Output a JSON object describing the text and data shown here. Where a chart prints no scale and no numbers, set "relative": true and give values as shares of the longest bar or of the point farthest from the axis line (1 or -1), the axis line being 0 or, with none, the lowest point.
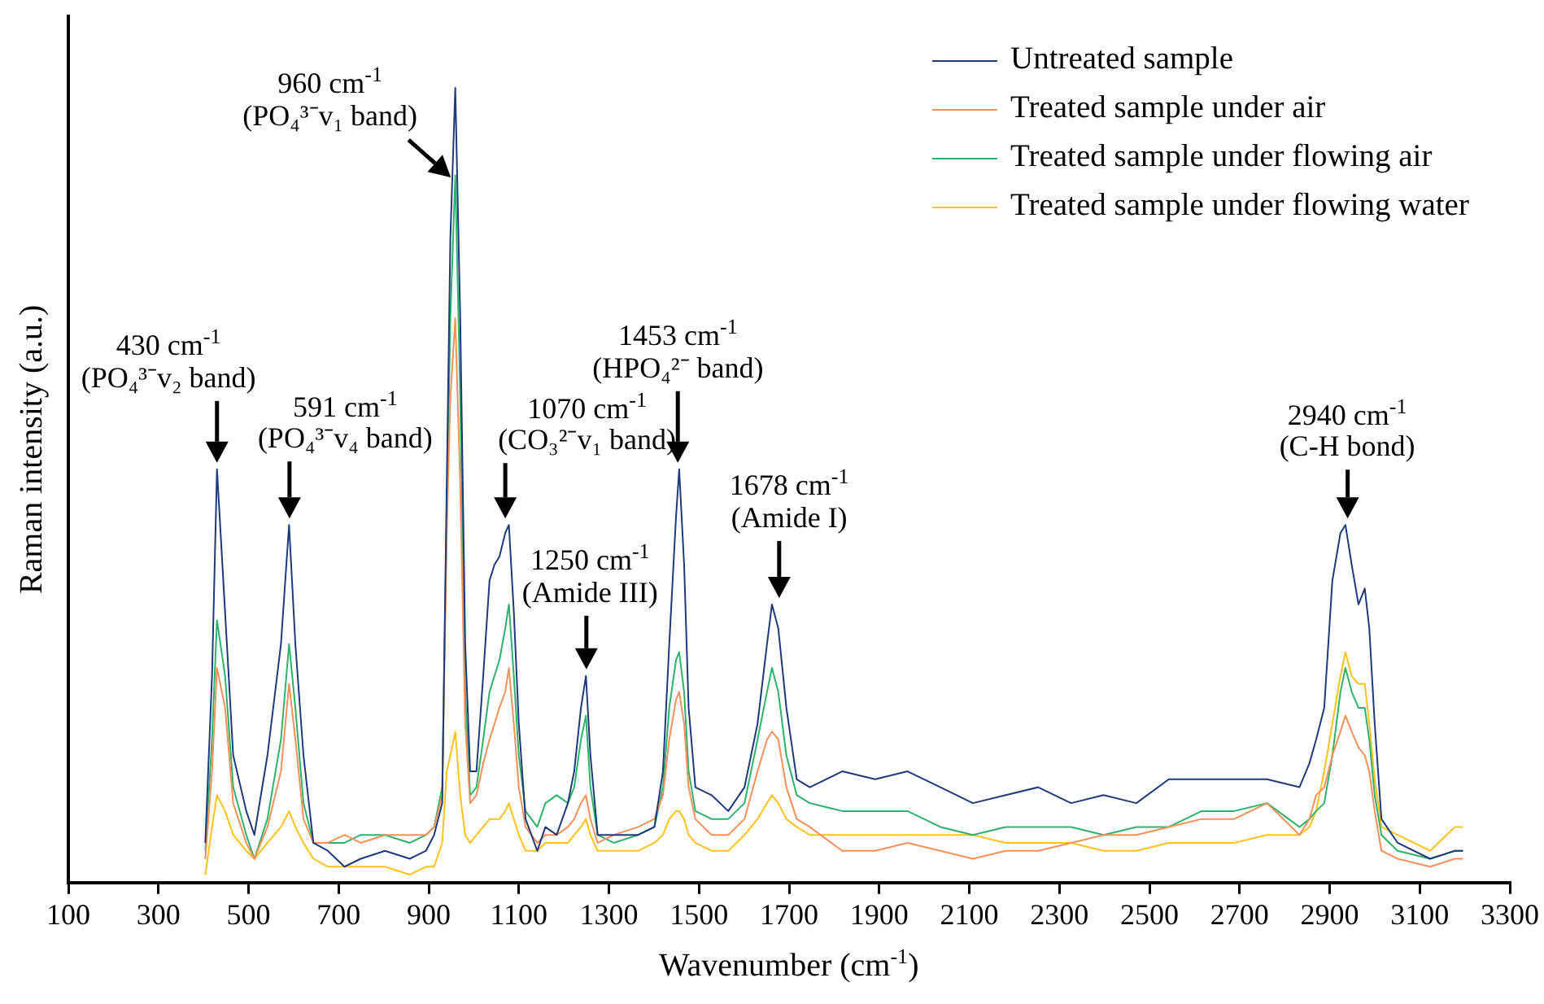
{
  "chart_data": {
    "type": "line",
    "relative": true,
    "xlabel": "Wavenumber (cm$^{-1}$)",
    "ylabel": "Raman intensity (a.u.)",
    "xlim": [
      100,
      3300
    ],
    "xticks": [
      100,
      300,
      500,
      700,
      900,
      1100,
      1300,
      1500,
      1700,
      1900,
      2100,
      2300,
      2500,
      2700,
      2900,
      3100,
      3300
    ],
    "grid": false,
    "legend": "top right",
    "marker": "none",
    "line_style": "solid",
    "x": [
      404,
      419,
      430,
      448,
      466,
      495,
      513,
      542,
      572,
      590,
      604,
      622,
      644,
      676,
      713,
      749,
      803,
      858,
      894,
      912,
      930,
      940,
      948,
      959,
      970,
      981,
      992,
      1006,
      1021,
      1035,
      1046,
      1057,
      1070,
      1078,
      1089,
      1100,
      1115,
      1141,
      1159,
      1184,
      1209,
      1223,
      1238,
      1249,
      1259,
      1275,
      1311,
      1365,
      1401,
      1420,
      1434,
      1449,
      1456,
      1467,
      1477,
      1492,
      1528,
      1565,
      1601,
      1630,
      1651,
      1662,
      1676,
      1694,
      1717,
      1746,
      1818,
      1891,
      1963,
      2036,
      2108,
      2181,
      2253,
      2326,
      2398,
      2471,
      2543,
      2616,
      2688,
      2761,
      2833,
      2855,
      2870,
      2888,
      2906,
      2924,
      2935,
      2949,
      2964,
      2978,
      2988,
      3000,
      3015,
      3051,
      3123,
      3178,
      3196
    ],
    "series": [
      {
        "name": "Untreated sample",
        "color": "#1f3a7a",
        "values": [
          0.05,
          0.26,
          0.52,
          0.34,
          0.16,
          0.09,
          0.06,
          0.16,
          0.3,
          0.45,
          0.3,
          0.16,
          0.05,
          0.04,
          0.02,
          0.03,
          0.04,
          0.03,
          0.04,
          0.06,
          0.1,
          0.5,
          0.81,
          1,
          0.71,
          0.3,
          0.14,
          0.14,
          0.26,
          0.38,
          0.4,
          0.41,
          0.44,
          0.45,
          0.34,
          0.2,
          0.08,
          0.04,
          0.07,
          0.06,
          0.1,
          0.14,
          0.22,
          0.26,
          0.16,
          0.06,
          0.06,
          0.06,
          0.07,
          0.14,
          0.3,
          0.46,
          0.52,
          0.4,
          0.22,
          0.12,
          0.11,
          0.09,
          0.12,
          0.2,
          0.3,
          0.35,
          0.32,
          0.22,
          0.13,
          0.12,
          0.14,
          0.13,
          0.14,
          0.12,
          0.1,
          0.11,
          0.12,
          0.1,
          0.11,
          0.1,
          0.13,
          0.13,
          0.13,
          0.13,
          0.12,
          0.15,
          0.18,
          0.22,
          0.38,
          0.44,
          0.45,
          0.4,
          0.35,
          0.37,
          0.32,
          0.2,
          0.08,
          0.05,
          0.03,
          0.04,
          0.04
        ]
      },
      {
        "name": "Treated sample under air",
        "color": "#f4915a",
        "values": [
          0.03,
          0.14,
          0.27,
          0.22,
          0.1,
          0.05,
          0.03,
          0.07,
          0.14,
          0.25,
          0.18,
          0.08,
          0.05,
          0.05,
          0.06,
          0.05,
          0.06,
          0.06,
          0.06,
          0.07,
          0.11,
          0.44,
          0.61,
          0.71,
          0.5,
          0.2,
          0.1,
          0.11,
          0.15,
          0.18,
          0.2,
          0.22,
          0.24,
          0.27,
          0.2,
          0.12,
          0.07,
          0.05,
          0.06,
          0.06,
          0.07,
          0.08,
          0.1,
          0.11,
          0.08,
          0.05,
          0.06,
          0.07,
          0.08,
          0.11,
          0.18,
          0.23,
          0.24,
          0.2,
          0.12,
          0.08,
          0.06,
          0.06,
          0.08,
          0.14,
          0.18,
          0.19,
          0.18,
          0.12,
          0.08,
          0.07,
          0.04,
          0.04,
          0.05,
          0.04,
          0.03,
          0.04,
          0.04,
          0.05,
          0.06,
          0.06,
          0.07,
          0.08,
          0.08,
          0.1,
          0.06,
          0.08,
          0.11,
          0.12,
          0.16,
          0.19,
          0.21,
          0.19,
          0.17,
          0.16,
          0.14,
          0.09,
          0.04,
          0.03,
          0.02,
          0.03,
          0.03
        ]
      },
      {
        "name": "Treated sample under flowing air",
        "color": "#2fb36a",
        "values": [
          0.04,
          0.18,
          0.33,
          0.26,
          0.12,
          0.06,
          0.03,
          0.08,
          0.18,
          0.3,
          0.22,
          0.1,
          0.05,
          0.05,
          0.05,
          0.06,
          0.06,
          0.05,
          0.06,
          0.07,
          0.12,
          0.46,
          0.71,
          0.89,
          0.61,
          0.24,
          0.11,
          0.12,
          0.18,
          0.24,
          0.26,
          0.28,
          0.32,
          0.35,
          0.26,
          0.16,
          0.09,
          0.07,
          0.1,
          0.11,
          0.1,
          0.12,
          0.18,
          0.21,
          0.12,
          0.06,
          0.05,
          0.06,
          0.07,
          0.12,
          0.22,
          0.28,
          0.29,
          0.24,
          0.14,
          0.09,
          0.08,
          0.08,
          0.1,
          0.18,
          0.24,
          0.27,
          0.24,
          0.16,
          0.11,
          0.1,
          0.09,
          0.09,
          0.09,
          0.07,
          0.06,
          0.07,
          0.07,
          0.07,
          0.06,
          0.07,
          0.07,
          0.09,
          0.09,
          0.1,
          0.07,
          0.08,
          0.09,
          0.1,
          0.16,
          0.24,
          0.27,
          0.24,
          0.22,
          0.22,
          0.18,
          0.11,
          0.06,
          0.04,
          0.03,
          0.04,
          0.04
        ]
      },
      {
        "name": "Treated sample under flowing water",
        "color": "#ffc21a",
        "values": [
          0.01,
          0.07,
          0.11,
          0.09,
          0.06,
          0.04,
          0.03,
          0.05,
          0.07,
          0.09,
          0.07,
          0.05,
          0.03,
          0.02,
          0.02,
          0.02,
          0.02,
          0.01,
          0.02,
          0.02,
          0.05,
          0.14,
          0.16,
          0.19,
          0.11,
          0.06,
          0.05,
          0.06,
          0.07,
          0.08,
          0.08,
          0.08,
          0.09,
          0.1,
          0.08,
          0.06,
          0.04,
          0.04,
          0.05,
          0.05,
          0.05,
          0.06,
          0.07,
          0.08,
          0.06,
          0.04,
          0.04,
          0.04,
          0.05,
          0.06,
          0.08,
          0.09,
          0.09,
          0.08,
          0.06,
          0.05,
          0.04,
          0.04,
          0.06,
          0.08,
          0.1,
          0.11,
          0.1,
          0.08,
          0.07,
          0.06,
          0.06,
          0.06,
          0.06,
          0.06,
          0.06,
          0.05,
          0.05,
          0.05,
          0.04,
          0.04,
          0.05,
          0.05,
          0.05,
          0.06,
          0.06,
          0.07,
          0.09,
          0.14,
          0.2,
          0.26,
          0.29,
          0.26,
          0.25,
          0.25,
          0.2,
          0.13,
          0.07,
          0.06,
          0.04,
          0.07,
          0.07
        ]
      }
    ],
    "annotations": [
      {
        "text": "430 cm$^{-1}$\n(PO₄³⁻v₂ band)",
        "x": 430,
        "y": 0.52
      },
      {
        "text": "591 cm$^{-1}$\n(PO₄³⁻v₄ band)",
        "x": 591,
        "y": 0.45
      },
      {
        "text": "960 cm$^{-1}$\n(PO₄³⁻v₁ band)",
        "x": 960,
        "y": 1
      },
      {
        "text": "1070 cm$^{-1}$\n(CO₃²⁻v₁ band)",
        "x": 1070,
        "y": 0.45
      },
      {
        "text": "1250 cm$^{-1}$\n(Amide III)",
        "x": 1250,
        "y": 0.26
      },
      {
        "text": "1453 cm$^{-1}$\n(HPO₄²⁻ band)",
        "x": 1453,
        "y": 0.52
      },
      {
        "text": "1678 cm$^{-1}$\n(Amide I)",
        "x": 1678,
        "y": 0.35
      },
      {
        "text": "2940 cm$^{-1}$\n(C-H bond)",
        "x": 2940,
        "y": 0.45
      }
    ]
  }
}
